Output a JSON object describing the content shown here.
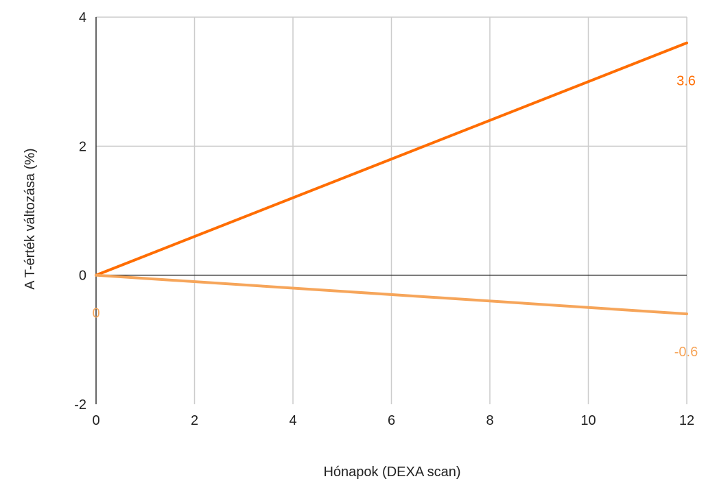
{
  "chart_data": {
    "type": "line",
    "title": "",
    "xlabel": "Hónapok (DEXA scan)",
    "ylabel": "A T-érték változása (%)",
    "xlim": [
      0,
      12
    ],
    "ylim": [
      -2,
      4
    ],
    "xticks": [
      0,
      2,
      4,
      6,
      8,
      10,
      12
    ],
    "yticks": [
      -2,
      0,
      2,
      4
    ],
    "grid": true,
    "legend": "none",
    "series": [
      {
        "color": "#ff6d01",
        "x": [
          0,
          12
        ],
        "y": [
          0,
          3.6
        ],
        "labels": [
          {
            "x": 12,
            "y": 3.6,
            "text": "3.6"
          }
        ]
      },
      {
        "color": "#f6a55a",
        "x": [
          0,
          12
        ],
        "y": [
          0,
          -0.6
        ],
        "labels": [
          {
            "x": 0,
            "y": 0,
            "text": "0"
          },
          {
            "x": 12,
            "y": -0.6,
            "text": "-0.6"
          }
        ]
      }
    ]
  }
}
